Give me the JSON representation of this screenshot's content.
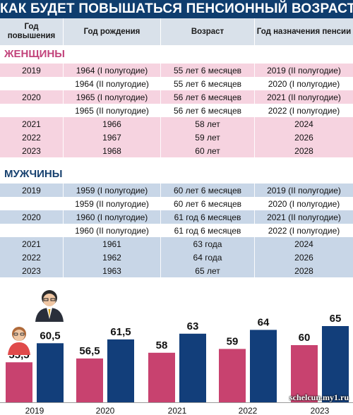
{
  "title": "КАК БУДЕТ ПОВЫШАТЬСЯ ПЕНСИОННЫЙ ВОЗРАСТ?",
  "headers": [
    "Год повышения",
    "Год рождения",
    "Возраст",
    "Год назначения пенсии"
  ],
  "women": {
    "label": "ЖЕНЩИНЫ",
    "rows": [
      {
        "year": "2019",
        "birth": "1964 (I полугодие)",
        "age": "55 лет 6 месяцев",
        "pension": "2019 (II полугодие)"
      },
      {
        "year": "",
        "birth": "1964 (II полугодие)",
        "age": "55 лет 6 месяцев",
        "pension": "2020 (I полугодие)"
      },
      {
        "year": "2020",
        "birth": "1965 (I полугодие)",
        "age": "56 лет 6 месяцев",
        "pension": "2021 (II полугодие)"
      },
      {
        "year": "",
        "birth": "1965 (II полугодие)",
        "age": "56 лет 6 месяцев",
        "pension": "2022 (I полугодие)"
      },
      {
        "year": "2021",
        "birth": "1966",
        "age": "58 лет",
        "pension": "2024"
      },
      {
        "year": "2022",
        "birth": "1967",
        "age": "59 лет",
        "pension": "2026"
      },
      {
        "year": "2023",
        "birth": "1968",
        "age": "60 лет",
        "pension": "2028"
      }
    ]
  },
  "men": {
    "label": "МУЖЧИНЫ",
    "rows": [
      {
        "year": "2019",
        "birth": "1959 (I полугодие)",
        "age": "60 лет 6 месяцев",
        "pension": "2019 (II полугодие)"
      },
      {
        "year": "",
        "birth": "1959 (II полугодие)",
        "age": "60 лет 6 месяцев",
        "pension": "2020 (I полугодие)"
      },
      {
        "year": "2020",
        "birth": "1960 (I полугодие)",
        "age": "61 год 6 месяцев",
        "pension": "2021 (II полугодие)"
      },
      {
        "year": "",
        "birth": "1960 (II полугодие)",
        "age": "61 год 6 месяцев",
        "pension": "2022 (I полугодие)"
      },
      {
        "year": "2021",
        "birth": "1961",
        "age": "63 года",
        "pension": "2024"
      },
      {
        "year": "2022",
        "birth": "1962",
        "age": "64 года",
        "pension": "2026"
      },
      {
        "year": "2023",
        "birth": "1963",
        "age": "65 лет",
        "pension": "2028"
      }
    ]
  },
  "colors": {
    "header_bg": "#0f3d6e",
    "women_accent": "#c2437b",
    "women_bar": "#c8426f",
    "men_accent": "#17416f",
    "men_bar": "#123e7a"
  },
  "watermark": "schelcun.my1.ru",
  "chart_data": {
    "type": "bar",
    "categories": [
      "2019",
      "2020",
      "2021",
      "2022",
      "2023"
    ],
    "series": [
      {
        "values": [
          55.5,
          56.5,
          58,
          59,
          60
        ],
        "labels": [
          "55,5",
          "56,5",
          "58",
          "59",
          "60"
        ],
        "color": "#c8426f"
      },
      {
        "values": [
          60.5,
          61.5,
          63,
          64,
          65
        ],
        "labels": [
          "60,5",
          "61,5",
          "63",
          "64",
          "65"
        ],
        "color": "#123e7a"
      }
    ]
  }
}
